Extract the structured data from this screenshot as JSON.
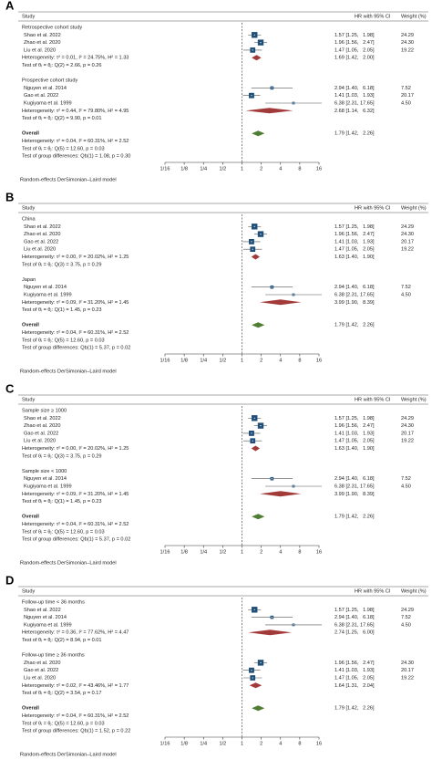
{
  "chart_data": [
    {
      "type": "forest",
      "panel": "A",
      "columns": [
        "Study",
        "HR with 95% CI",
        "Weight (%)"
      ],
      "xscale": "log",
      "xlim": [
        0.0625,
        16
      ],
      "xticks": [
        {
          "value": 0.0625,
          "label": "1/16"
        },
        {
          "value": 0.125,
          "label": "1/8"
        },
        {
          "value": 0.25,
          "label": "1/4"
        },
        {
          "value": 0.5,
          "label": "1/2"
        },
        1,
        2,
        4,
        8,
        16
      ],
      "colors": {
        "study": "#1f4e79",
        "subgroup": "#a33a3a",
        "overall": "#4f7d34"
      },
      "groups": [
        {
          "title": "Retrospective cohort study",
          "studies": [
            {
              "name": "Shao et al. 2022",
              "hr": 1.57,
              "ci": [
                1.25,
                1.98
              ],
              "value_label": "1.57 [1.25,   1.98]",
              "weight": "24.29"
            },
            {
              "name": "Zhao et al. 2020",
              "hr": 1.96,
              "ci": [
                1.56,
                2.47
              ],
              "value_label": "1.96 [1.56,   2.47]",
              "weight": "24.30"
            },
            {
              "name": "Liu et al. 2020",
              "hr": 1.47,
              "ci": [
                1.05,
                2.05
              ],
              "value_label": "1.47 [1.05,   2.05]",
              "weight": "19.22"
            }
          ],
          "heterogeneity": "Heterogeneity: τ² = 0.01, I² = 24.75%, H² = 1.33",
          "pooled": {
            "hr": 1.69,
            "ci": [
              1.42,
              2.0
            ],
            "value_label": "1.69 [1.42,   2.00]"
          },
          "test": "Test of θᵢ = θⱼ: Q(2) = 2.66, p = 0.26"
        },
        {
          "title": "Prospective cohort study",
          "studies": [
            {
              "name": "Nguyen et al. 2014",
              "hr": 2.94,
              "ci": [
                1.4,
                6.18
              ],
              "value_label": "2.94 [1.40,   6.18]",
              "weight": "7.52"
            },
            {
              "name": "Gao et al. 2022",
              "hr": 1.41,
              "ci": [
                1.03,
                1.93
              ],
              "value_label": "1.41 [1.03,   1.93]",
              "weight": "20.17"
            },
            {
              "name": "Kugiyama et al. 1999",
              "hr": 6.38,
              "ci": [
                2.31,
                17.65
              ],
              "value_label": "6.38 [2.31, 17.65]",
              "weight": "4.50"
            }
          ],
          "heterogeneity": "Heterogeneity: τ² = 0.44, I² = 79.80%, H² = 4.95",
          "pooled": {
            "hr": 2.68,
            "ci": [
              1.14,
              6.32
            ],
            "value_label": "2.68 [1.14,   6.32]"
          },
          "test": "Test of θᵢ = θⱼ: Q(2) = 9.90, p = 0.01"
        }
      ],
      "overall": {
        "title": "Overall",
        "hr": 1.79,
        "ci": [
          1.42,
          2.26
        ],
        "value_label": "1.79 [1.42,   2.26]",
        "heterogeneity": "Heterogeneity: τ² = 0.04, I² = 60.31%, H² = 2.52",
        "test": "Test of θᵢ = θⱼ: Q(5) = 12.60, p = 0.03",
        "group_test": "Test of group differences: Qb(1) = 1.08, p = 0.30"
      },
      "footnote": "Random-effects DerSimonian–Laird model"
    },
    {
      "type": "forest",
      "panel": "B",
      "columns": [
        "Study",
        "HR with 95% CI",
        "Weight (%)"
      ],
      "xscale": "log",
      "xlim": [
        0.0625,
        16
      ],
      "xticks": [
        {
          "value": 0.0625,
          "label": "1/16"
        },
        {
          "value": 0.125,
          "label": "1/8"
        },
        {
          "value": 0.25,
          "label": "1/4"
        },
        {
          "value": 0.5,
          "label": "1/2"
        },
        1,
        2,
        4,
        8,
        16
      ],
      "colors": {
        "study": "#1f4e79",
        "subgroup": "#a33a3a",
        "overall": "#4f7d34"
      },
      "groups": [
        {
          "title": "China",
          "studies": [
            {
              "name": "Shao et al. 2022",
              "hr": 1.57,
              "ci": [
                1.25,
                1.98
              ],
              "value_label": "1.57 [1.25,   1.98]",
              "weight": "24.29"
            },
            {
              "name": "Zhao et al. 2020",
              "hr": 1.96,
              "ci": [
                1.56,
                2.47
              ],
              "value_label": "1.96 [1.56,   2.47]",
              "weight": "24.30"
            },
            {
              "name": "Gao et al. 2022",
              "hr": 1.41,
              "ci": [
                1.03,
                1.93
              ],
              "value_label": "1.41 [1.03,   1.93]",
              "weight": "20.17"
            },
            {
              "name": "Liu et al. 2020",
              "hr": 1.47,
              "ci": [
                1.05,
                2.05
              ],
              "value_label": "1.47 [1.05,   2.05]",
              "weight": "19.22"
            }
          ],
          "heterogeneity": "Heterogeneity: τ² = 0.00, I² = 20.02%, H² = 1.25",
          "pooled": {
            "hr": 1.63,
            "ci": [
              1.4,
              1.9
            ],
            "value_label": "1.63 [1.40,   1.90]"
          },
          "test": "Test of θᵢ = θⱼ: Q(3) = 3.75, p = 0.29"
        },
        {
          "title": "Japan",
          "studies": [
            {
              "name": "Nguyen et al. 2014",
              "hr": 2.94,
              "ci": [
                1.4,
                6.18
              ],
              "value_label": "2.94 [1.40,   6.18]",
              "weight": "7.52"
            },
            {
              "name": "Kugiyama et al. 1999",
              "hr": 6.38,
              "ci": [
                2.31,
                17.65
              ],
              "value_label": "6.38 [2.31, 17.65]",
              "weight": "4.50"
            }
          ],
          "heterogeneity": "Heterogeneity: τ² = 0.09, I² = 31.20%, H² = 1.45",
          "pooled": {
            "hr": 3.99,
            "ci": [
              1.9,
              8.39
            ],
            "value_label": "3.99 [1.90,   8.39]"
          },
          "test": "Test of θᵢ = θⱼ: Q(1) = 1.45, p = 0.23"
        }
      ],
      "overall": {
        "title": "Overall",
        "hr": 1.79,
        "ci": [
          1.42,
          2.26
        ],
        "value_label": "1.79 [1.42,   2.26]",
        "heterogeneity": "Heterogeneity: τ² = 0.04, I² = 60.31%, H² = 2.52",
        "test": "Test of θᵢ = θⱼ: Q(5) = 12.60, p = 0.03",
        "group_test": "Test of group differences: Qb(1) = 5.37, p = 0.02"
      },
      "footnote": "Random-effects DerSimonian–Laird model"
    },
    {
      "type": "forest",
      "panel": "C",
      "columns": [
        "Study",
        "HR with 95% CI",
        "Weight (%)"
      ],
      "xscale": "log",
      "xlim": [
        0.0625,
        16
      ],
      "xticks": [
        {
          "value": 0.0625,
          "label": "1/16"
        },
        {
          "value": 0.125,
          "label": "1/8"
        },
        {
          "value": 0.25,
          "label": "1/4"
        },
        {
          "value": 0.5,
          "label": "1/2"
        },
        1,
        2,
        4,
        8,
        16
      ],
      "colors": {
        "study": "#1f4e79",
        "subgroup": "#a33a3a",
        "overall": "#4f7d34"
      },
      "groups": [
        {
          "title": "Sample size ≥ 1000",
          "studies": [
            {
              "name": "Shao et al. 2022",
              "hr": 1.57,
              "ci": [
                1.25,
                1.98
              ],
              "value_label": "1.57 [1.25,   1.98]",
              "weight": "24.29"
            },
            {
              "name": "Zhao et al. 2020",
              "hr": 1.96,
              "ci": [
                1.56,
                2.47
              ],
              "value_label": "1.96 [1.56,   2.47]",
              "weight": "24.30"
            },
            {
              "name": "Gao et al. 2022",
              "hr": 1.41,
              "ci": [
                1.03,
                1.93
              ],
              "value_label": "1.41 [1.03,   1.93]",
              "weight": "20.17"
            },
            {
              "name": "Liu et al. 2020",
              "hr": 1.47,
              "ci": [
                1.05,
                2.05
              ],
              "value_label": "1.47 [1.05,   2.05]",
              "weight": "19.22"
            }
          ],
          "heterogeneity": "Heterogeneity: τ² = 0.00, I² = 20.02%, H² = 1.25",
          "pooled": {
            "hr": 1.63,
            "ci": [
              1.4,
              1.9
            ],
            "value_label": "1.63 [1.40,   1.90]"
          },
          "test": "Test of θᵢ = θⱼ: Q(3) = 3.75, p = 0.29"
        },
        {
          "title": "Sample size < 1000",
          "studies": [
            {
              "name": "Nguyen et al. 2014",
              "hr": 2.94,
              "ci": [
                1.4,
                6.18
              ],
              "value_label": "2.94 [1.40,   6.18]",
              "weight": "7.52"
            },
            {
              "name": "Kugiyama et al. 1999",
              "hr": 6.38,
              "ci": [
                2.31,
                17.65
              ],
              "value_label": "6.38 [2.31, 17.65]",
              "weight": "4.50"
            }
          ],
          "heterogeneity": "Heterogeneity: τ² = 0.09, I² = 31.20%, H² = 1.45",
          "pooled": {
            "hr": 3.99,
            "ci": [
              1.9,
              8.39
            ],
            "value_label": "3.99 [1.90,   8.39]"
          },
          "test": "Test of θᵢ = θⱼ: Q(1) = 1.45, p = 0.23"
        }
      ],
      "overall": {
        "title": "Overall",
        "hr": 1.79,
        "ci": [
          1.42,
          2.26
        ],
        "value_label": "1.79 [1.42,   2.26]",
        "heterogeneity": "Heterogeneity: τ² = 0.04, I² = 60.31%, H² = 2.52",
        "test": "Test of θᵢ = θⱼ: Q(5) = 12.60, p = 0.03",
        "group_test": "Test of group differences: Qb(1) = 5.37, p = 0.02"
      },
      "footnote": "Random-effects DerSimonian–Laird model"
    },
    {
      "type": "forest",
      "panel": "D",
      "columns": [
        "Study",
        "HR with 95% CI",
        "Weight (%)"
      ],
      "xscale": "log",
      "xlim": [
        0.0625,
        16
      ],
      "xticks": [
        {
          "value": 0.0625,
          "label": "1/16"
        },
        {
          "value": 0.125,
          "label": "1/8"
        },
        {
          "value": 0.25,
          "label": "1/4"
        },
        {
          "value": 0.5,
          "label": "1/2"
        },
        1,
        2,
        4,
        8,
        16
      ],
      "colors": {
        "study": "#1f4e79",
        "subgroup": "#a33a3a",
        "overall": "#4f7d34"
      },
      "groups": [
        {
          "title": "Follow-up time < 36 months",
          "studies": [
            {
              "name": "Shao et al. 2022",
              "hr": 1.57,
              "ci": [
                1.25,
                1.98
              ],
              "value_label": "1.57 [1.25,   1.98]",
              "weight": "24.29"
            },
            {
              "name": "Nguyen et al. 2014",
              "hr": 2.94,
              "ci": [
                1.4,
                6.18
              ],
              "value_label": "2.94 [1.40,   6.18]",
              "weight": "7.52"
            },
            {
              "name": "Kugiyama et al. 1999",
              "hr": 6.38,
              "ci": [
                2.31,
                17.65
              ],
              "value_label": "6.38 [2.31, 17.65]",
              "weight": "4.50"
            }
          ],
          "heterogeneity": "Heterogeneity: τ² = 0.36, I² = 77.62%, H² = 4.47",
          "pooled": {
            "hr": 2.74,
            "ci": [
              1.25,
              6.0
            ],
            "value_label": "2.74 [1.25,   6.00]"
          },
          "test": "Test of θᵢ = θⱼ: Q(2) = 8.94, p = 0.01"
        },
        {
          "title": "Follow-up time ≥ 36 months",
          "studies": [
            {
              "name": "Zhao et al. 2020",
              "hr": 1.96,
              "ci": [
                1.56,
                2.47
              ],
              "value_label": "1.96 [1.56,   2.47]",
              "weight": "24.30"
            },
            {
              "name": "Gao et al. 2022",
              "hr": 1.41,
              "ci": [
                1.03,
                1.93
              ],
              "value_label": "1.41 [1.03,   1.93]",
              "weight": "20.17"
            },
            {
              "name": "Liu et al. 2020",
              "hr": 1.47,
              "ci": [
                1.05,
                2.05
              ],
              "value_label": "1.47 [1.05,   2.05]",
              "weight": "19.22"
            }
          ],
          "heterogeneity": "Heterogeneity: τ² = 0.02, I² = 43.46%, H² = 1.77",
          "pooled": {
            "hr": 1.64,
            "ci": [
              1.31,
              2.04
            ],
            "value_label": "1.64 [1.31,   2.04]"
          },
          "test": "Test of θᵢ = θⱼ: Q(2) = 3.54, p = 0.17"
        }
      ],
      "overall": {
        "title": "Overall",
        "hr": 1.79,
        "ci": [
          1.42,
          2.26
        ],
        "value_label": "1.79 [1.42,   2.26]",
        "heterogeneity": "Heterogeneity: τ² = 0.04, I² = 60.31%, H² = 2.52",
        "test": "Test of θᵢ = θⱼ: Q(5) = 12.60, p = 0.03",
        "group_test": "Test of group differences: Qb(1) = 1.52, p = 0.22"
      },
      "footnote": "Random-effects DerSimonian–Laird model"
    }
  ]
}
